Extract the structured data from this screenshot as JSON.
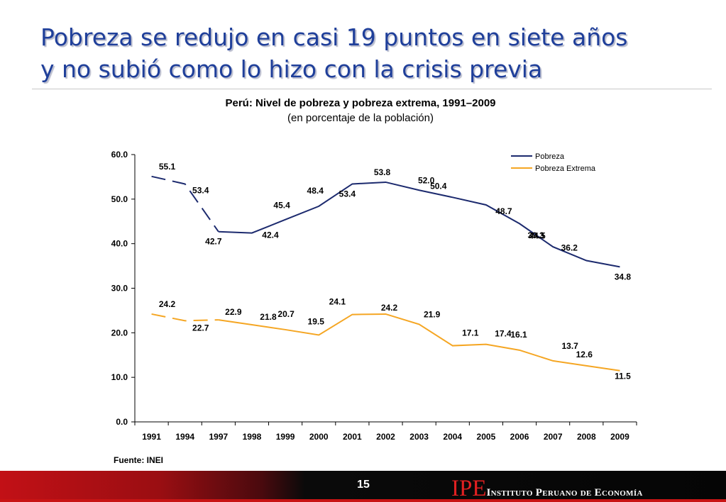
{
  "slide": {
    "title_line1": "Pobreza se redujo en casi 19 puntos en siete años",
    "title_line2": "y no subió como lo hizo con la crisis previa",
    "source": "Fuente: INEI",
    "page_number": "15",
    "brand_logo": "IPE",
    "brand_name": "Instituto Peruano de Economía"
  },
  "colors": {
    "title": "#1f3f9a",
    "pobreza": "#1c2a6e",
    "pobreza_extrema": "#f5a623",
    "footer_red": "#c21016",
    "logo_red": "#e12021"
  },
  "chart_data": {
    "type": "line",
    "title": "Perú: Nivel de pobreza y pobreza extrema, 1991–2009",
    "subtitle": "(en porcentaje de la población)",
    "categories": [
      "1991",
      "1994",
      "1997",
      "1998",
      "1999",
      "2000",
      "2001",
      "2002",
      "2003",
      "2004",
      "2005",
      "2006",
      "2007",
      "2008",
      "2009"
    ],
    "ylim": [
      0,
      60
    ],
    "y_ticks": [
      "0.0",
      "10.0",
      "20.0",
      "30.0",
      "40.0",
      "50.0",
      "60.0"
    ],
    "legend_position": "top-right",
    "grid": false,
    "dashed_until_index": 2,
    "series": [
      {
        "name": "Pobreza",
        "color": "#1c2a6e",
        "values": [
          55.1,
          53.4,
          42.7,
          42.4,
          45.4,
          48.4,
          53.4,
          53.8,
          52.0,
          50.4,
          48.7,
          44.5,
          39.3,
          36.2,
          34.8
        ],
        "labels": [
          "55.1",
          "53.4",
          "42.7",
          "42.4",
          "45.4",
          "48.4",
          "53.4",
          "53.8",
          "52.0",
          "50.4",
          "48.7",
          "44.5",
          "39.3",
          "36.2",
          "34.8"
        ]
      },
      {
        "name": "Pobreza Extrema",
        "color": "#f5a623",
        "values": [
          24.2,
          22.7,
          22.9,
          21.8,
          20.7,
          19.5,
          24.1,
          24.2,
          21.9,
          17.1,
          17.4,
          16.1,
          13.7,
          12.6,
          11.5
        ],
        "labels": [
          "24.2",
          "22.7",
          "22.9",
          "21.8",
          "20.7",
          "19.5",
          "24.1",
          "24.2",
          "21.9",
          "17.1",
          "17.4",
          "16.1",
          "13.7",
          "12.6",
          "11.5"
        ]
      }
    ]
  }
}
